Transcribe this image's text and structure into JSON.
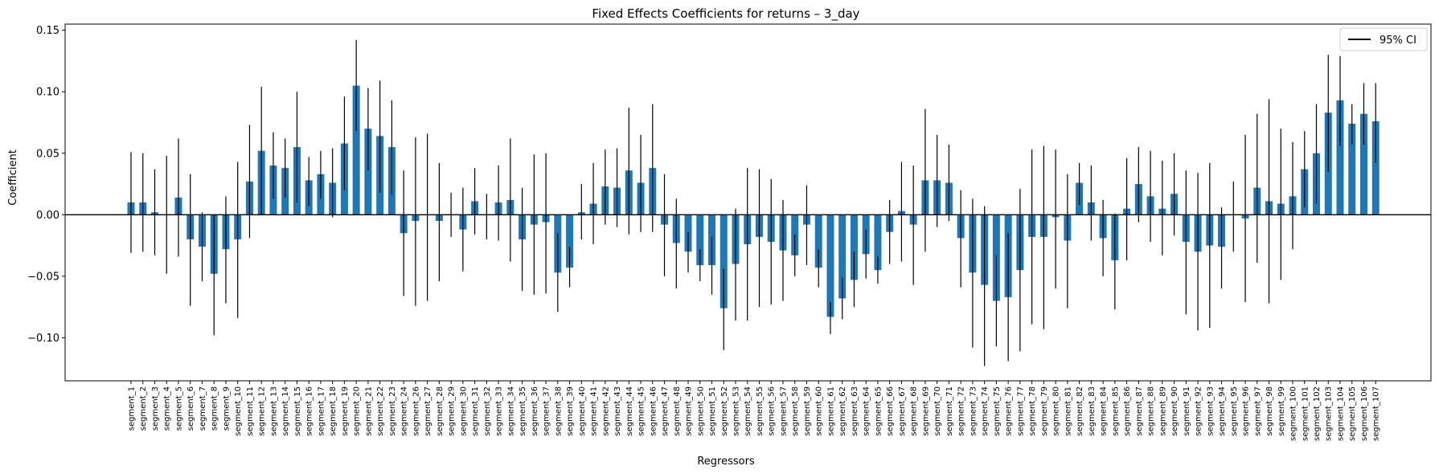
{
  "chart_data": {
    "type": "bar",
    "title": "Fixed Effects Coefficients for returns – 3_day",
    "xlabel": "Regressors",
    "ylabel": "Coefficient",
    "ylim": [
      -0.135,
      0.155
    ],
    "yticks": [
      "−0.10",
      "−0.05",
      "0.00",
      "0.05",
      "0.10",
      "0.15"
    ],
    "ytick_values": [
      -0.1,
      -0.05,
      0.0,
      0.05,
      0.1,
      0.15
    ],
    "legend": {
      "label": "95% CI",
      "placement": "top-right"
    },
    "bar_color": "#1f77b4",
    "errorbar_color": "#000000",
    "grid": false,
    "categories": [
      "segment_1",
      "segment_2",
      "segment_3",
      "segment_4",
      "segment_5",
      "segment_6",
      "segment_7",
      "segment_8",
      "segment_9",
      "segment_10",
      "segment_11",
      "segment_12",
      "segment_13",
      "segment_14",
      "segment_15",
      "segment_16",
      "segment_17",
      "segment_18",
      "segment_19",
      "segment_20",
      "segment_21",
      "segment_22",
      "segment_23",
      "segment_24",
      "segment_26",
      "segment_27",
      "segment_28",
      "segment_29",
      "segment_30",
      "segment_31",
      "segment_32",
      "segment_33",
      "segment_34",
      "segment_35",
      "segment_36",
      "segment_37",
      "segment_38",
      "segment_39",
      "segment_40",
      "segment_41",
      "segment_42",
      "segment_43",
      "segment_44",
      "segment_45",
      "segment_46",
      "segment_47",
      "segment_48",
      "segment_49",
      "segment_50",
      "segment_51",
      "segment_52",
      "segment_53",
      "segment_54",
      "segment_55",
      "segment_56",
      "segment_57",
      "segment_58",
      "segment_59",
      "segment_60",
      "segment_61",
      "segment_62",
      "segment_63",
      "segment_64",
      "segment_65",
      "segment_66",
      "segment_67",
      "segment_68",
      "segment_69",
      "segment_70",
      "segment_71",
      "segment_72",
      "segment_73",
      "segment_74",
      "segment_75",
      "segment_76",
      "segment_77",
      "segment_78",
      "segment_79",
      "segment_80",
      "segment_81",
      "segment_82",
      "segment_83",
      "segment_84",
      "segment_85",
      "segment_86",
      "segment_87",
      "segment_88",
      "segment_89",
      "segment_90",
      "segment_91",
      "segment_92",
      "segment_93",
      "segment_94",
      "segment_95",
      "segment_96",
      "segment_97",
      "segment_98",
      "segment_99",
      "segment_100",
      "segment_101",
      "segment_102",
      "segment_103",
      "segment_104",
      "segment_105",
      "segment_106",
      "segment_107"
    ],
    "values": [
      0.01,
      0.01,
      0.002,
      0.0,
      0.014,
      -0.02,
      -0.026,
      -0.048,
      -0.028,
      -0.02,
      0.027,
      0.052,
      0.04,
      0.038,
      0.055,
      0.028,
      0.033,
      0.026,
      0.058,
      0.105,
      0.07,
      0.064,
      0.055,
      -0.015,
      -0.005,
      0.0,
      -0.005,
      0.0,
      -0.012,
      0.011,
      0.0,
      0.01,
      0.012,
      -0.02,
      -0.008,
      -0.006,
      -0.047,
      -0.043,
      0.002,
      0.009,
      0.023,
      0.022,
      0.036,
      0.026,
      0.038,
      -0.008,
      -0.023,
      -0.03,
      -0.041,
      -0.041,
      -0.076,
      -0.04,
      -0.024,
      -0.018,
      -0.022,
      -0.029,
      -0.033,
      -0.008,
      -0.043,
      -0.083,
      -0.068,
      -0.053,
      -0.032,
      -0.045,
      -0.014,
      0.003,
      -0.008,
      0.028,
      0.028,
      0.026,
      -0.019,
      -0.047,
      -0.057,
      -0.07,
      -0.067,
      -0.045,
      -0.018,
      -0.018,
      -0.002,
      -0.021,
      0.026,
      0.01,
      -0.019,
      -0.037,
      0.005,
      0.025,
      0.015,
      0.005,
      0.017,
      -0.022,
      -0.03,
      -0.025,
      -0.026,
      0.0,
      -0.003,
      0.022,
      0.011,
      0.009,
      0.015,
      0.037,
      0.05,
      0.083,
      0.093,
      0.074,
      0.082,
      0.076
    ],
    "ci_lower": [
      -0.031,
      -0.03,
      -0.033,
      -0.048,
      -0.034,
      -0.074,
      -0.054,
      -0.098,
      -0.072,
      -0.084,
      -0.019,
      0.0,
      0.013,
      0.014,
      0.01,
      0.007,
      0.013,
      -0.002,
      0.02,
      0.068,
      0.036,
      0.018,
      0.016,
      -0.066,
      -0.074,
      -0.07,
      -0.054,
      -0.018,
      -0.046,
      -0.016,
      -0.02,
      -0.021,
      -0.038,
      -0.062,
      -0.065,
      -0.064,
      -0.079,
      -0.059,
      -0.02,
      -0.024,
      -0.008,
      -0.01,
      -0.016,
      -0.014,
      -0.014,
      -0.05,
      -0.06,
      -0.047,
      -0.054,
      -0.065,
      -0.11,
      -0.086,
      -0.086,
      -0.075,
      -0.073,
      -0.07,
      -0.05,
      -0.041,
      -0.059,
      -0.097,
      -0.085,
      -0.075,
      -0.052,
      -0.056,
      -0.04,
      -0.038,
      -0.057,
      -0.03,
      -0.01,
      -0.005,
      -0.059,
      -0.108,
      -0.123,
      -0.107,
      -0.119,
      -0.111,
      -0.089,
      -0.093,
      -0.06,
      -0.076,
      0.008,
      -0.021,
      -0.05,
      -0.077,
      -0.037,
      -0.006,
      -0.022,
      -0.033,
      -0.017,
      -0.081,
      -0.094,
      -0.092,
      -0.06,
      -0.03,
      -0.071,
      -0.039,
      -0.072,
      -0.053,
      -0.028,
      0.006,
      0.009,
      0.035,
      0.056,
      0.057,
      0.057,
      0.042
    ],
    "ci_upper": [
      0.051,
      0.05,
      0.037,
      0.048,
      0.062,
      0.033,
      0.002,
      0.0,
      0.015,
      0.043,
      0.073,
      0.104,
      0.067,
      0.062,
      0.1,
      0.047,
      0.052,
      0.054,
      0.096,
      0.142,
      0.103,
      0.109,
      0.093,
      0.036,
      0.063,
      0.066,
      0.042,
      0.018,
      0.022,
      0.038,
      0.017,
      0.04,
      0.062,
      0.022,
      0.049,
      0.05,
      -0.015,
      -0.026,
      0.025,
      0.042,
      0.053,
      0.054,
      0.087,
      0.065,
      0.09,
      0.033,
      0.013,
      -0.014,
      -0.028,
      -0.018,
      -0.044,
      0.005,
      0.038,
      0.037,
      0.029,
      0.012,
      -0.016,
      0.024,
      -0.028,
      -0.071,
      -0.051,
      -0.03,
      -0.012,
      -0.034,
      0.012,
      0.043,
      0.04,
      0.086,
      0.065,
      0.057,
      0.02,
      0.013,
      0.007,
      -0.033,
      -0.015,
      0.021,
      0.053,
      0.056,
      0.053,
      0.033,
      0.042,
      0.04,
      0.012,
      0.001,
      0.046,
      0.055,
      0.052,
      0.044,
      0.05,
      0.036,
      0.034,
      0.042,
      0.006,
      0.027,
      0.065,
      0.082,
      0.094,
      0.07,
      0.059,
      0.068,
      0.09,
      0.13,
      0.129,
      0.09,
      0.107,
      0.107
    ]
  }
}
